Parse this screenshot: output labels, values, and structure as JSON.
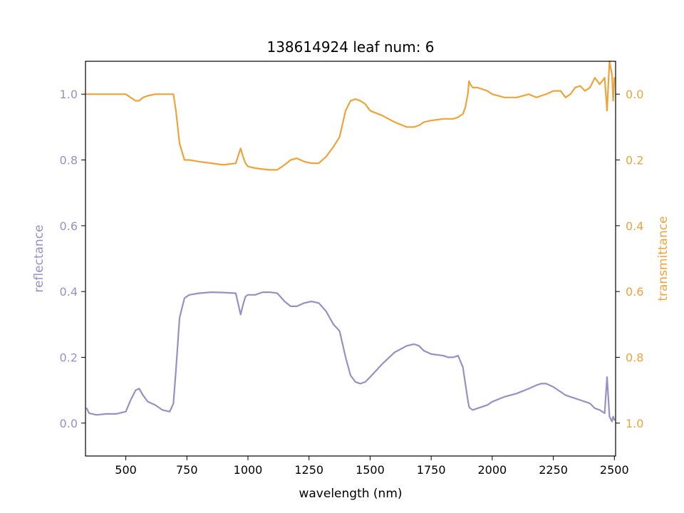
{
  "chart_data": {
    "type": "line",
    "title": "138614924 leaf num: 6",
    "xlabel": "wavelength (nm)",
    "xlim": [
      335,
      2505
    ],
    "x_ticks": [
      500,
      750,
      1000,
      1250,
      1500,
      1750,
      2000,
      2250,
      2500
    ],
    "y_left": {
      "label": "reflectance",
      "lim": [
        -0.1,
        1.1
      ],
      "ticks": [
        0.0,
        0.2,
        0.4,
        0.6,
        0.8,
        1.0
      ],
      "tick_labels": [
        "0.0",
        "0.2",
        "0.4",
        "0.6",
        "0.8",
        "1.0"
      ],
      "color": "#9691c4"
    },
    "y_right": {
      "label": "transmittance",
      "lim": [
        1.1,
        -0.1
      ],
      "inverted": true,
      "ticks": [
        0.0,
        0.2,
        0.4,
        0.6,
        0.8,
        1.0
      ],
      "tick_labels": [
        "0.0",
        "0.2",
        "0.4",
        "0.6",
        "0.8",
        "1.0"
      ],
      "color": "#eea33b"
    },
    "grid": false,
    "series": [
      {
        "axis": "left",
        "color": "#9691c4",
        "x": [
          340,
          350,
          380,
          420,
          460,
          500,
          520,
          540,
          555,
          570,
          590,
          620,
          650,
          680,
          695,
          705,
          720,
          740,
          760,
          800,
          850,
          900,
          950,
          970,
          980,
          990,
          1000,
          1030,
          1060,
          1090,
          1120,
          1150,
          1175,
          1200,
          1230,
          1260,
          1290,
          1320,
          1350,
          1375,
          1400,
          1420,
          1440,
          1460,
          1480,
          1500,
          1550,
          1600,
          1650,
          1680,
          1700,
          1720,
          1750,
          1800,
          1820,
          1840,
          1860,
          1880,
          1890,
          1900,
          1905,
          1910,
          1920,
          1940,
          1960,
          1980,
          2000,
          2050,
          2100,
          2150,
          2180,
          2200,
          2220,
          2250,
          2280,
          2300,
          2320,
          2340,
          2360,
          2380,
          2400,
          2420,
          2440,
          2460,
          2470,
          2480,
          2490,
          2495,
          2500
        ],
        "y": [
          0.045,
          0.03,
          0.025,
          0.028,
          0.028,
          0.035,
          0.07,
          0.1,
          0.105,
          0.085,
          0.065,
          0.055,
          0.04,
          0.035,
          0.06,
          0.16,
          0.32,
          0.38,
          0.39,
          0.395,
          0.398,
          0.397,
          0.395,
          0.33,
          0.36,
          0.385,
          0.39,
          0.39,
          0.398,
          0.398,
          0.395,
          0.37,
          0.355,
          0.355,
          0.365,
          0.37,
          0.365,
          0.34,
          0.3,
          0.28,
          0.2,
          0.145,
          0.125,
          0.12,
          0.125,
          0.14,
          0.18,
          0.215,
          0.235,
          0.24,
          0.235,
          0.22,
          0.21,
          0.205,
          0.2,
          0.2,
          0.205,
          0.17,
          0.12,
          0.07,
          0.05,
          0.045,
          0.04,
          0.045,
          0.05,
          0.055,
          0.065,
          0.08,
          0.09,
          0.105,
          0.115,
          0.12,
          0.12,
          0.11,
          0.095,
          0.085,
          0.08,
          0.075,
          0.07,
          0.065,
          0.06,
          0.045,
          0.04,
          0.03,
          0.14,
          0.02,
          0.005,
          0.02,
          0.01
        ]
      },
      {
        "axis": "right",
        "color": "#eea33b",
        "x": [
          340,
          350,
          380,
          420,
          460,
          500,
          520,
          540,
          555,
          570,
          590,
          620,
          650,
          680,
          695,
          705,
          720,
          740,
          760,
          800,
          850,
          900,
          950,
          970,
          980,
          990,
          1000,
          1030,
          1060,
          1090,
          1120,
          1150,
          1175,
          1200,
          1230,
          1260,
          1290,
          1320,
          1350,
          1375,
          1400,
          1420,
          1440,
          1460,
          1480,
          1500,
          1550,
          1600,
          1650,
          1680,
          1700,
          1720,
          1750,
          1800,
          1820,
          1840,
          1860,
          1880,
          1890,
          1900,
          1905,
          1910,
          1920,
          1940,
          1960,
          1980,
          2000,
          2050,
          2100,
          2150,
          2180,
          2200,
          2220,
          2250,
          2280,
          2300,
          2320,
          2340,
          2360,
          2380,
          2400,
          2420,
          2440,
          2460,
          2470,
          2480,
          2490,
          2495,
          2500
        ],
        "y": [
          0.0,
          0.0,
          0.0,
          0.0,
          0.0,
          0.0,
          0.01,
          0.02,
          0.02,
          0.01,
          0.005,
          0.0,
          0.0,
          0.0,
          0.0,
          0.05,
          0.15,
          0.2,
          0.2,
          0.205,
          0.21,
          0.215,
          0.21,
          0.165,
          0.19,
          0.21,
          0.22,
          0.225,
          0.228,
          0.23,
          0.23,
          0.215,
          0.2,
          0.195,
          0.205,
          0.21,
          0.21,
          0.19,
          0.16,
          0.13,
          0.05,
          0.02,
          0.015,
          0.02,
          0.03,
          0.05,
          0.065,
          0.085,
          0.1,
          0.1,
          0.095,
          0.085,
          0.08,
          0.075,
          0.075,
          0.075,
          0.07,
          0.06,
          0.04,
          0.0,
          -0.04,
          -0.03,
          -0.02,
          -0.02,
          -0.015,
          -0.01,
          0.0,
          0.01,
          0.01,
          0.0,
          0.01,
          0.005,
          0.0,
          -0.01,
          -0.01,
          0.01,
          0.0,
          -0.02,
          -0.025,
          -0.01,
          -0.02,
          -0.05,
          -0.03,
          -0.05,
          0.05,
          -0.1,
          -0.06,
          0.02,
          -0.05
        ]
      }
    ]
  }
}
